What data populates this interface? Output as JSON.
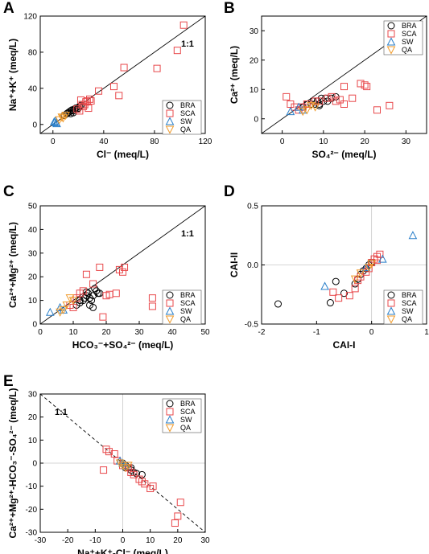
{
  "figure": {
    "colors": {
      "BRA": "#000000",
      "SCA": "#e8474a",
      "SW": "#2a7fc9",
      "QA": "#f09a2a"
    }
  },
  "chart_data": [
    {
      "panel": "A",
      "type": "scatter",
      "xlabel": "Cl⁻ (meq/L)",
      "ylabel": "Na⁺+K⁺ (meq/L)",
      "xlim": [
        -10,
        120
      ],
      "ylim": [
        -10,
        120
      ],
      "xticks": [
        "0",
        "40",
        "80",
        "120"
      ],
      "xtickvals": [
        0,
        40,
        80,
        120
      ],
      "yticks": [
        "0",
        "40",
        "80",
        "120"
      ],
      "ytickvals": [
        0,
        40,
        80,
        120
      ],
      "reference_line": {
        "label": "1:1",
        "kind": "y=x"
      },
      "legend": [
        "BRA",
        "SCA",
        "SW",
        "QA"
      ],
      "legend_position": "bottom-right",
      "series": [
        {
          "name": "BRA",
          "marker": "circle",
          "points": [
            [
              9,
              10
            ],
            [
              11,
              12
            ],
            [
              12,
              13
            ],
            [
              13,
              14
            ],
            [
              14,
              15
            ],
            [
              15,
              16
            ],
            [
              16,
              15
            ],
            [
              17,
              17
            ],
            [
              18,
              18
            ],
            [
              19,
              17
            ],
            [
              20,
              18
            ],
            [
              21,
              20
            ],
            [
              14,
              12
            ],
            [
              22,
              21
            ],
            [
              16,
              13
            ]
          ]
        },
        {
          "name": "SCA",
          "marker": "square",
          "points": [
            [
              103,
              110
            ],
            [
              98,
              82
            ],
            [
              82,
              62
            ],
            [
              56,
              63
            ],
            [
              48,
              42
            ],
            [
              52,
              32
            ],
            [
              36,
              37
            ],
            [
              30,
              26
            ],
            [
              29,
              28
            ],
            [
              27,
              26
            ],
            [
              26,
              25
            ],
            [
              25,
              22
            ],
            [
              24,
              20
            ],
            [
              23,
              22
            ],
            [
              22,
              27
            ],
            [
              28,
              18
            ],
            [
              21,
              15
            ],
            [
              19,
              17
            ]
          ]
        },
        {
          "name": "SW",
          "marker": "triangle-up",
          "points": [
            [
              1,
              3
            ],
            [
              2,
              4
            ],
            [
              2.5,
              2
            ],
            [
              3,
              1
            ]
          ]
        },
        {
          "name": "QA",
          "marker": "triangle-down",
          "points": [
            [
              5,
              5
            ],
            [
              7,
              8
            ],
            [
              8,
              7
            ],
            [
              10,
              10
            ]
          ]
        }
      ]
    },
    {
      "panel": "B",
      "type": "scatter",
      "xlabel": "SO₄²⁻ (meq/L)",
      "ylabel": "Ca²⁺ (meq/L)",
      "xlim": [
        -5,
        35
      ],
      "ylim": [
        -5,
        35
      ],
      "xticks": [
        "0",
        "10",
        "20",
        "30"
      ],
      "xtickvals": [
        0,
        10,
        20,
        30
      ],
      "yticks": [
        "0",
        "10",
        "20",
        "30"
      ],
      "ytickvals": [
        0,
        10,
        20,
        30
      ],
      "reference_line": {
        "label": "1:1",
        "kind": "y=x"
      },
      "legend": [
        "BRA",
        "SCA",
        "SW",
        "QA"
      ],
      "legend_position": "top-right",
      "series": [
        {
          "name": "BRA",
          "marker": "circle",
          "points": [
            [
              5,
              4
            ],
            [
              6,
              5
            ],
            [
              7,
              5
            ],
            [
              7.5,
              6
            ],
            [
              8,
              5
            ],
            [
              8.5,
              6
            ],
            [
              9,
              5
            ],
            [
              9.5,
              7
            ],
            [
              10,
              6
            ],
            [
              10.5,
              7
            ],
            [
              11,
              6
            ],
            [
              12,
              7
            ],
            [
              13,
              7.5
            ],
            [
              9,
              4.5
            ]
          ]
        },
        {
          "name": "SCA",
          "marker": "square",
          "points": [
            [
              1,
              7.5
            ],
            [
              2,
              5
            ],
            [
              3,
              4
            ],
            [
              4,
              3
            ],
            [
              5,
              4
            ],
            [
              6,
              5
            ],
            [
              8,
              6
            ],
            [
              9,
              6
            ],
            [
              11,
              7
            ],
            [
              13,
              6
            ],
            [
              14,
              6.5
            ],
            [
              15,
              11
            ],
            [
              17,
              7
            ],
            [
              19,
              12
            ],
            [
              20,
              11.5
            ],
            [
              20.5,
              11
            ],
            [
              23,
              3
            ],
            [
              26,
              4.5
            ],
            [
              15,
              5
            ],
            [
              12,
              7.5
            ]
          ]
        },
        {
          "name": "SW",
          "marker": "triangle-up",
          "points": [
            [
              2,
              2.5
            ],
            [
              4,
              4
            ],
            [
              5,
              3
            ]
          ]
        },
        {
          "name": "QA",
          "marker": "triangle-down",
          "points": [
            [
              5,
              2.5
            ],
            [
              6,
              3
            ],
            [
              7,
              4.5
            ],
            [
              8,
              4
            ]
          ]
        }
      ]
    },
    {
      "panel": "C",
      "type": "scatter",
      "xlabel": "HCO₃⁻+SO₄²⁻ (meq/L)",
      "ylabel": "Ca²⁺+Mg²⁺ (meq/L)",
      "xlim": [
        0,
        50
      ],
      "ylim": [
        0,
        50
      ],
      "xticks": [
        "0",
        "10",
        "20",
        "30",
        "40",
        "50"
      ],
      "xtickvals": [
        0,
        10,
        20,
        30,
        40,
        50
      ],
      "yticks": [
        "0",
        "10",
        "20",
        "30",
        "40",
        "50"
      ],
      "ytickvals": [
        0,
        10,
        20,
        30,
        40,
        50
      ],
      "reference_line": {
        "label": "1:1",
        "kind": "y=x"
      },
      "legend": [
        "BRA",
        "SCA",
        "SW",
        "QA"
      ],
      "legend_position": "bottom-right",
      "series": [
        {
          "name": "BRA",
          "marker": "circle",
          "points": [
            [
              11,
              8
            ],
            [
              12,
              10
            ],
            [
              13,
              10
            ],
            [
              13.5,
              11
            ],
            [
              14,
              12
            ],
            [
              14.5,
              13
            ],
            [
              15,
              11
            ],
            [
              15.5,
              10
            ],
            [
              16,
              12
            ],
            [
              16.5,
              15
            ],
            [
              17,
              14
            ],
            [
              17.5,
              13
            ],
            [
              18,
              13
            ],
            [
              12,
              9
            ],
            [
              15,
              8
            ],
            [
              16,
              7
            ],
            [
              14,
              13.5
            ]
          ]
        },
        {
          "name": "SCA",
          "marker": "square",
          "points": [
            [
              9,
              8
            ],
            [
              10,
              7
            ],
            [
              11,
              11
            ],
            [
              12,
              13
            ],
            [
              13,
              14
            ],
            [
              14,
              21
            ],
            [
              18,
              24
            ],
            [
              16,
              17
            ],
            [
              19,
              3
            ],
            [
              20,
              12
            ],
            [
              21,
              12.5
            ],
            [
              23,
              13
            ],
            [
              24,
              23
            ],
            [
              25,
              22
            ],
            [
              25.5,
              24
            ],
            [
              34,
              7.5
            ],
            [
              34,
              11
            ]
          ]
        },
        {
          "name": "SW",
          "marker": "triangle-up",
          "points": [
            [
              3,
              5
            ],
            [
              6,
              7
            ],
            [
              7,
              6
            ]
          ]
        },
        {
          "name": "QA",
          "marker": "triangle-down",
          "points": [
            [
              6,
              5
            ],
            [
              7,
              6
            ],
            [
              8,
              8
            ],
            [
              9,
              11
            ],
            [
              10,
              10
            ]
          ]
        }
      ]
    },
    {
      "panel": "D",
      "type": "scatter",
      "xlabel": "CAI-I",
      "ylabel": "CAI-II",
      "xlim": [
        -2,
        1
      ],
      "ylim": [
        -0.5,
        0.5
      ],
      "xticks": [
        "-2",
        "-1",
        "0",
        "1"
      ],
      "xtickvals": [
        -2,
        -1,
        0,
        1
      ],
      "yticks": [
        "-0.5",
        "0.0",
        "0.5"
      ],
      "ytickvals": [
        -0.5,
        0,
        0.5
      ],
      "zero_lines": true,
      "legend": [
        "BRA",
        "SCA",
        "SW",
        "QA"
      ],
      "legend_position": "bottom-right",
      "series": [
        {
          "name": "BRA",
          "marker": "circle",
          "points": [
            [
              -1.7,
              -0.33
            ],
            [
              -0.75,
              -0.32
            ],
            [
              -0.65,
              -0.14
            ],
            [
              -0.5,
              -0.24
            ],
            [
              -0.3,
              -0.16
            ],
            [
              -0.25,
              -0.12
            ],
            [
              -0.2,
              -0.08
            ],
            [
              -0.15,
              -0.05
            ],
            [
              -0.1,
              -0.03
            ],
            [
              -0.05,
              0.0
            ],
            [
              0.0,
              0.02
            ]
          ]
        },
        {
          "name": "SCA",
          "marker": "square",
          "points": [
            [
              -0.7,
              -0.23
            ],
            [
              -0.6,
              -0.28
            ],
            [
              -0.4,
              -0.26
            ],
            [
              -0.3,
              -0.2
            ],
            [
              -0.25,
              -0.13
            ],
            [
              -0.2,
              -0.1
            ],
            [
              -0.1,
              -0.06
            ],
            [
              -0.05,
              -0.03
            ],
            [
              0.0,
              0.02
            ],
            [
              0.05,
              0.05
            ],
            [
              0.1,
              0.07
            ],
            [
              0.15,
              0.09
            ],
            [
              0.1,
              0.04
            ]
          ]
        },
        {
          "name": "SW",
          "marker": "triangle-up",
          "points": [
            [
              -0.85,
              -0.18
            ],
            [
              -0.1,
              -0.02
            ],
            [
              0.2,
              0.05
            ],
            [
              0.75,
              0.25
            ]
          ]
        },
        {
          "name": "QA",
          "marker": "triangle-down",
          "points": [
            [
              -0.3,
              -0.12
            ],
            [
              -0.2,
              -0.07
            ],
            [
              -0.05,
              -0.02
            ],
            [
              0.0,
              0.01
            ]
          ]
        }
      ]
    },
    {
      "panel": "E",
      "type": "scatter",
      "xlabel": "Na⁺+K⁺-Cl⁻ (meq/L)",
      "ylabel": "Ca²⁺+Mg²⁺-HCO₃⁻-SO₄²⁻ (meq/L)",
      "xlim": [
        -30,
        30
      ],
      "ylim": [
        -30,
        30
      ],
      "xticks": [
        "-30",
        "-20",
        "-10",
        "0",
        "10",
        "20",
        "30"
      ],
      "xtickvals": [
        -30,
        -20,
        -10,
        0,
        10,
        20,
        30
      ],
      "yticks": [
        "-30",
        "-20",
        "-10",
        "0",
        "10",
        "20",
        "30"
      ],
      "ytickvals": [
        -30,
        -20,
        -10,
        0,
        10,
        20,
        30
      ],
      "zero_lines": true,
      "reference_line": {
        "label": "1:1",
        "kind": "y=-x"
      },
      "legend": [
        "BRA",
        "SCA",
        "SW",
        "QA"
      ],
      "legend_position": "top-right",
      "series": [
        {
          "name": "BRA",
          "marker": "circle",
          "points": [
            [
              0,
              0
            ],
            [
              1,
              -1
            ],
            [
              2,
              -2
            ],
            [
              3,
              -3
            ],
            [
              4,
              -4
            ],
            [
              5,
              -4.5
            ],
            [
              7,
              -5
            ],
            [
              3,
              -2
            ],
            [
              1,
              -2
            ]
          ]
        },
        {
          "name": "SCA",
          "marker": "square",
          "points": [
            [
              -6,
              6
            ],
            [
              -5,
              5
            ],
            [
              -7,
              -3
            ],
            [
              -3,
              4
            ],
            [
              -2,
              1
            ],
            [
              0,
              -1
            ],
            [
              2,
              -2
            ],
            [
              3,
              -4
            ],
            [
              4,
              -5
            ],
            [
              6,
              -7
            ],
            [
              7,
              -8
            ],
            [
              8,
              -9
            ],
            [
              10,
              -11
            ],
            [
              21,
              -17
            ],
            [
              20,
              -23
            ],
            [
              19,
              -26
            ],
            [
              11,
              -10
            ]
          ]
        },
        {
          "name": "SW",
          "marker": "triangle-up",
          "points": [
            [
              -1,
              1
            ],
            [
              0,
              0
            ],
            [
              1,
              -1
            ]
          ]
        },
        {
          "name": "QA",
          "marker": "triangle-down",
          "points": [
            [
              -1,
              0
            ],
            [
              0,
              -1
            ],
            [
              1,
              -2
            ],
            [
              2,
              -1
            ]
          ]
        }
      ]
    }
  ]
}
